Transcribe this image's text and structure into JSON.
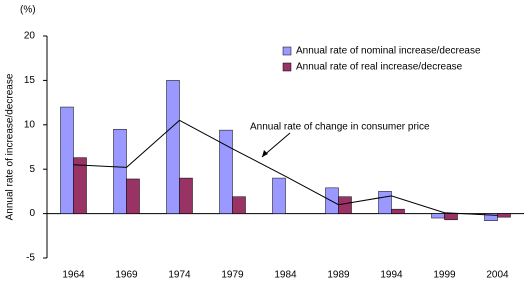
{
  "chart_data": {
    "type": "bar",
    "y_unit": "(%)",
    "y_label": "Annual rate of increase/decrease",
    "categories": [
      "1964",
      "1969",
      "1974",
      "1979",
      "1984",
      "1989",
      "1994",
      "1999",
      "2004"
    ],
    "series": [
      {
        "name": "Annual rate of nominal increase/decrease",
        "color": "#9999ff",
        "values": [
          12.0,
          9.5,
          15.0,
          9.4,
          4.0,
          2.9,
          2.5,
          -0.5,
          -0.8
        ]
      },
      {
        "name": "Annual rate of real increase/decrease",
        "color": "#993366",
        "values": [
          6.3,
          3.9,
          4.0,
          1.9,
          0,
          1.9,
          0.5,
          -0.7,
          -0.4
        ]
      },
      {
        "name": "Annual rate of change in consumer price",
        "color": "#000000",
        "type": "line",
        "values": [
          5.5,
          5.2,
          10.5,
          7.3,
          4.2,
          1.0,
          2.0,
          0.1,
          -0.2
        ]
      }
    ],
    "ylim": [
      -5,
      20
    ],
    "yticks": [
      -5,
      0,
      5,
      10,
      15,
      20
    ],
    "legend": "upper-right"
  }
}
